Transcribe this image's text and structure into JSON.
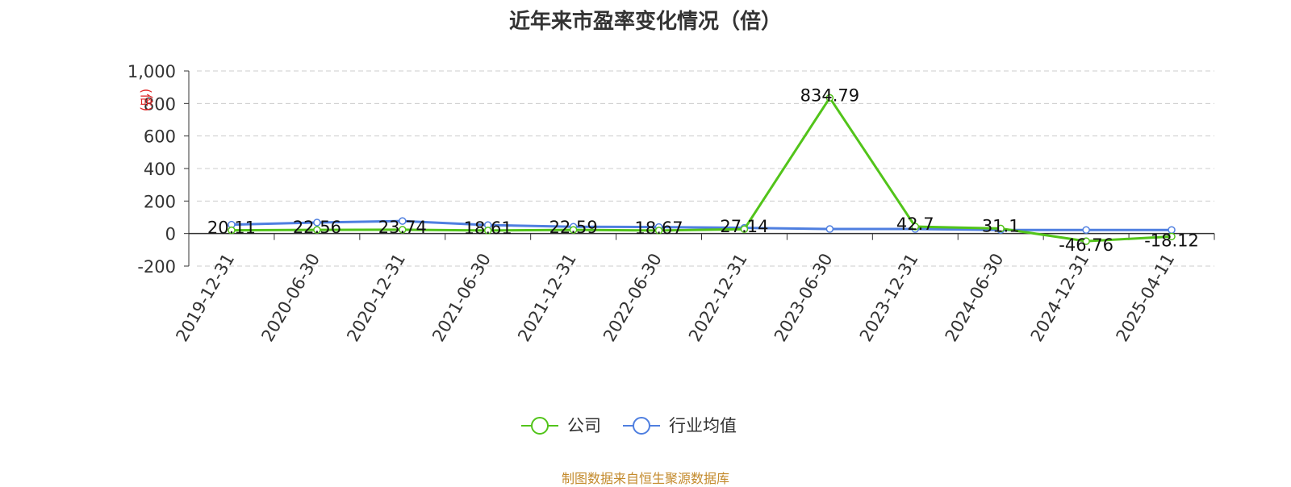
{
  "chart_data": {
    "type": "line",
    "title": "近年来市盈率变化情况（倍）",
    "ylabel": "(倍)",
    "ylim": [
      -200,
      1000
    ],
    "yticks": [
      -200,
      0,
      200,
      400,
      600,
      800,
      1000
    ],
    "ytick_labels": [
      "-200",
      "0",
      "200",
      "400",
      "600",
      "800",
      "1,000"
    ],
    "categories": [
      "2019-12-31",
      "2020-06-30",
      "2020-12-31",
      "2021-06-30",
      "2021-12-31",
      "2022-06-30",
      "2022-12-31",
      "2023-06-30",
      "2023-12-31",
      "2024-06-30",
      "2024-12-31",
      "2025-04-11"
    ],
    "series": [
      {
        "name": "公司",
        "color": "#52c41a",
        "values": [
          20.11,
          22.56,
          23.74,
          18.61,
          22.59,
          18.67,
          27.14,
          834.79,
          42.7,
          31.1,
          -46.76,
          -18.12
        ],
        "labels": [
          "20.11",
          "22.56",
          "23.74",
          "18.61",
          "22.59",
          "18.67",
          "27.14",
          "834.79",
          "42.7",
          "31.1",
          "-46.76",
          "-18.12"
        ]
      },
      {
        "name": "行业均值",
        "color": "#4f7fe0",
        "values": [
          55,
          68,
          77,
          52,
          42,
          40,
          35,
          28,
          28,
          22,
          22,
          22
        ]
      }
    ],
    "grid": true,
    "legend_position": "bottom-center"
  },
  "source_note": "制图数据来自恒生聚源数据库"
}
